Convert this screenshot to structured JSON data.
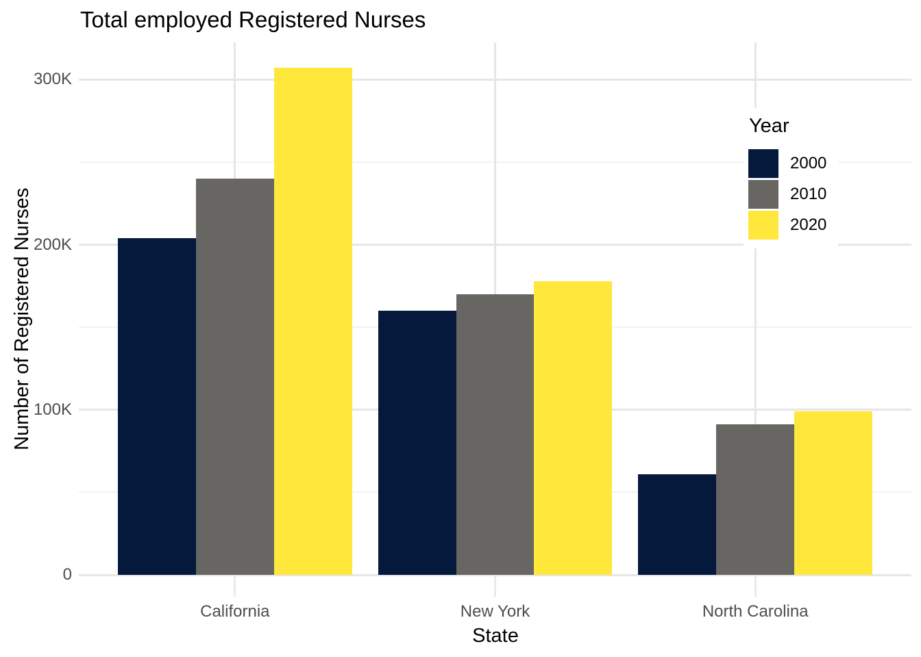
{
  "chart_data": {
    "type": "bar",
    "title": "Total employed Registered Nurses",
    "xlabel": "State",
    "ylabel": "Number of Registered Nurses",
    "legend_title": "Year",
    "legend_position": "inside-right",
    "grid": true,
    "background": "#FFFFFF",
    "categories": [
      "California",
      "New York",
      "North Carolina"
    ],
    "series": [
      {
        "name": "2000",
        "color": "#05193C",
        "values": [
          204000,
          160000,
          61000
        ]
      },
      {
        "name": "2010",
        "color": "#676663",
        "values": [
          240000,
          170000,
          91000
        ]
      },
      {
        "name": "2020",
        "color": "#FFE73C",
        "values": [
          307000,
          178000,
          99000
        ]
      }
    ],
    "y_ticks": [
      {
        "value": 0,
        "label": "0"
      },
      {
        "value": 100000,
        "label": "100K"
      },
      {
        "value": 200000,
        "label": "200K"
      },
      {
        "value": 300000,
        "label": "300K"
      }
    ],
    "y_minor_ticks": [
      50000,
      150000,
      250000
    ],
    "ylim": [
      0,
      322500
    ],
    "colors": {
      "grid_major": "#E6E6E6",
      "grid_minor": "#F2F2F2",
      "tick_text": "#4D4D4D",
      "title_text": "#000000"
    }
  }
}
